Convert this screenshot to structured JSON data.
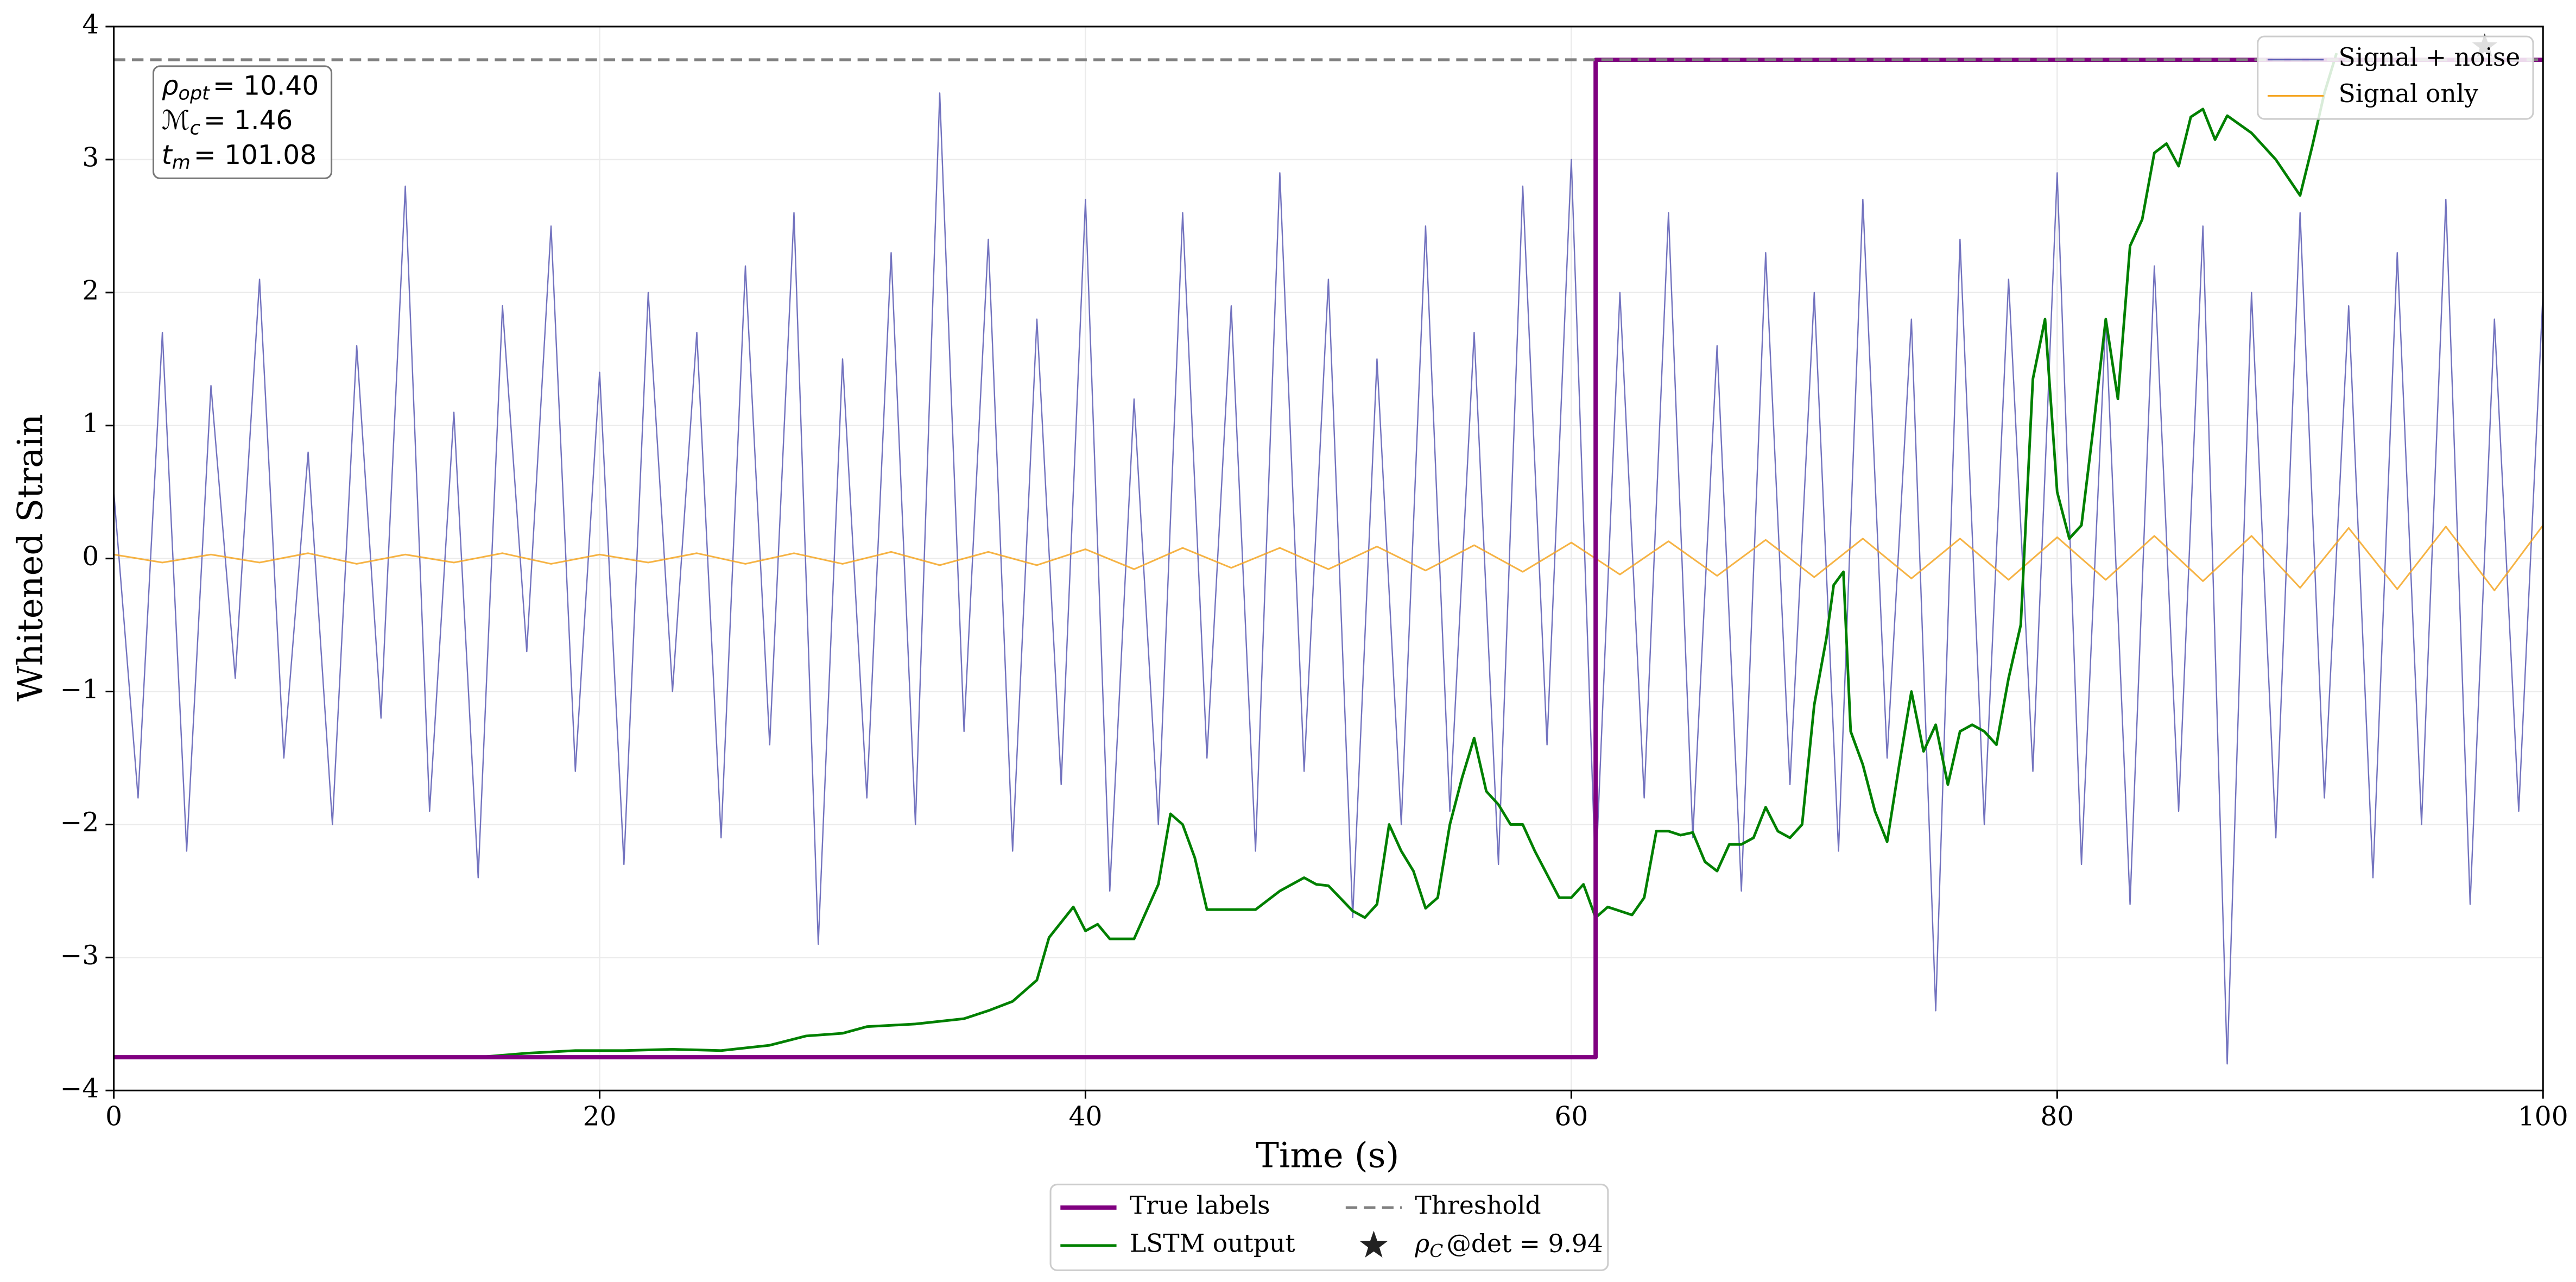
{
  "chart_data": {
    "type": "line",
    "xlabel": "Time (s)",
    "ylabel": "Whitened Strain",
    "xlim": [
      0,
      100
    ],
    "ylim": [
      -4,
      4
    ],
    "xticks": [
      0,
      20,
      40,
      60,
      80,
      100
    ],
    "yticks": [
      {
        "value": -4,
        "label": "−4"
      },
      {
        "value": -3,
        "label": "−3"
      },
      {
        "value": -2,
        "label": "−2"
      },
      {
        "value": -1,
        "label": "−1"
      },
      0,
      1,
      2,
      3,
      4
    ],
    "grid": true,
    "series": [
      {
        "name": "Signal + noise",
        "color": "#5a5ab4",
        "legend_loc": "upper right",
        "x": [
          0,
          1,
          2,
          3,
          4,
          5,
          6,
          7,
          8,
          9,
          10,
          11,
          12,
          13,
          14,
          15,
          16,
          17,
          18,
          19,
          20,
          21,
          22,
          23,
          24,
          25,
          26,
          27,
          28,
          29,
          30,
          31,
          32,
          33,
          34,
          35,
          36,
          37,
          38,
          39,
          40,
          41,
          42,
          43,
          44,
          45,
          46,
          47,
          48,
          49,
          50,
          51,
          52,
          53,
          54,
          55,
          56,
          57,
          58,
          59,
          60,
          61,
          62,
          63,
          64,
          65,
          66,
          67,
          68,
          69,
          70,
          71,
          72,
          73,
          74,
          75,
          76,
          77,
          78,
          79,
          80,
          81,
          82,
          83,
          84,
          85,
          86,
          87,
          88,
          89,
          90,
          91,
          92,
          93,
          94,
          95,
          96,
          97,
          98,
          99,
          100
        ],
        "values": [
          0.5,
          -1.8,
          1.7,
          -2.2,
          1.3,
          -0.9,
          2.1,
          -1.5,
          0.8,
          -2.0,
          1.6,
          -1.2,
          2.8,
          -1.9,
          1.1,
          -2.4,
          1.9,
          -0.7,
          2.5,
          -1.6,
          1.4,
          -2.3,
          2.0,
          -1.0,
          1.7,
          -2.1,
          2.2,
          -1.4,
          2.6,
          -2.9,
          1.5,
          -1.8,
          2.3,
          -2.0,
          3.5,
          -1.3,
          2.4,
          -2.2,
          1.8,
          -1.7,
          2.7,
          -2.5,
          1.2,
          -2.0,
          2.6,
          -1.5,
          1.9,
          -2.2,
          2.9,
          -1.6,
          2.1,
          -2.7,
          1.5,
          -2.0,
          2.5,
          -1.9,
          1.7,
          -2.3,
          2.8,
          -1.4,
          3.0,
          -2.4,
          2.0,
          -1.8,
          2.6,
          -2.1,
          1.6,
          -2.5,
          2.3,
          -1.7,
          2.0,
          -2.2,
          2.7,
          -1.5,
          1.8,
          -3.4,
          2.4,
          -2.0,
          2.1,
          -1.6,
          2.9,
          -2.3,
          1.8,
          -2.6,
          2.2,
          -1.9,
          2.5,
          -3.8,
          2.0,
          -2.1,
          2.6,
          -1.8,
          1.9,
          -2.4,
          2.3,
          -2.0,
          2.7,
          -2.6,
          1.8,
          -1.9,
          2.0
        ]
      },
      {
        "name": "Signal only",
        "color": "#f5a623",
        "legend_loc": "upper right",
        "x": [
          0,
          2,
          4,
          6,
          8,
          10,
          12,
          14,
          16,
          18,
          20,
          22,
          24,
          26,
          28,
          30,
          32,
          34,
          36,
          38,
          40,
          42,
          44,
          46,
          48,
          50,
          52,
          54,
          56,
          58,
          60,
          62,
          64,
          66,
          68,
          70,
          72,
          74,
          76,
          78,
          80,
          82,
          84,
          86,
          88,
          90,
          92,
          94,
          96,
          98,
          100
        ],
        "values": [
          0.03,
          -0.03,
          0.03,
          -0.03,
          0.04,
          -0.04,
          0.03,
          -0.03,
          0.04,
          -0.04,
          0.03,
          -0.03,
          0.04,
          -0.04,
          0.04,
          -0.04,
          0.05,
          -0.05,
          0.05,
          -0.05,
          0.07,
          -0.08,
          0.08,
          -0.07,
          0.08,
          -0.08,
          0.09,
          -0.09,
          0.1,
          -0.1,
          0.12,
          -0.12,
          0.13,
          -0.13,
          0.14,
          -0.14,
          0.15,
          -0.15,
          0.15,
          -0.16,
          0.16,
          -0.16,
          0.17,
          -0.17,
          0.17,
          -0.22,
          0.23,
          -0.23,
          0.24,
          -0.24,
          0.25
        ]
      },
      {
        "name": "LSTM output",
        "color": "#008000",
        "legend_loc": "lower center",
        "x": [
          0,
          15,
          17,
          19,
          21,
          23,
          25,
          27,
          28.5,
          30,
          31,
          33,
          35,
          36,
          37,
          38,
          38.5,
          39.5,
          40,
          40.5,
          41,
          42,
          43,
          43.5,
          44,
          44.5,
          45,
          47,
          48,
          49,
          49.5,
          50,
          51,
          51.5,
          52,
          52.5,
          53,
          53.5,
          54,
          54.5,
          55,
          55.5,
          56,
          56.5,
          57,
          57.5,
          58,
          58.5,
          59.5,
          60,
          60.5,
          61,
          61.5,
          62,
          62.5,
          63,
          63.5,
          64,
          64.5,
          65,
          65.5,
          66,
          66.5,
          67,
          67.5,
          68,
          68.5,
          69,
          69.5,
          70,
          70.5,
          70.8,
          71.2,
          71.5,
          72,
          72.5,
          73,
          73.5,
          74,
          74.5,
          75,
          75.5,
          76,
          76.5,
          77,
          77.5,
          78,
          78.5,
          79,
          79.5,
          80,
          80.5,
          81,
          81.5,
          82,
          82.5,
          83,
          83.5,
          84,
          84.5,
          85,
          85.5,
          86,
          86.5,
          87,
          88,
          89,
          90,
          90.5,
          91,
          91.5
        ],
        "values": [
          -3.75,
          -3.75,
          -3.72,
          -3.7,
          -3.7,
          -3.69,
          -3.7,
          -3.66,
          -3.59,
          -3.57,
          -3.52,
          -3.5,
          -3.46,
          -3.4,
          -3.33,
          -3.17,
          -2.85,
          -2.62,
          -2.8,
          -2.75,
          -2.86,
          -2.86,
          -2.45,
          -1.92,
          -2.0,
          -2.25,
          -2.64,
          -2.64,
          -2.5,
          -2.4,
          -2.45,
          -2.46,
          -2.65,
          -2.7,
          -2.6,
          -2.0,
          -2.2,
          -2.35,
          -2.63,
          -2.55,
          -2.0,
          -1.65,
          -1.35,
          -1.75,
          -1.85,
          -2.0,
          -2.0,
          -2.2,
          -2.55,
          -2.55,
          -2.45,
          -2.7,
          -2.62,
          -2.65,
          -2.68,
          -2.55,
          -2.05,
          -2.05,
          -2.08,
          -2.06,
          -2.28,
          -2.35,
          -2.15,
          -2.15,
          -2.1,
          -1.87,
          -2.05,
          -2.1,
          -2.0,
          -1.1,
          -0.6,
          -0.2,
          -0.1,
          -1.3,
          -1.55,
          -1.9,
          -2.13,
          -1.55,
          -1.0,
          -1.45,
          -1.25,
          -1.7,
          -1.3,
          -1.25,
          -1.3,
          -1.4,
          -0.9,
          -0.5,
          1.35,
          1.8,
          0.5,
          0.15,
          0.25,
          1.0,
          1.8,
          1.2,
          2.35,
          2.55,
          3.05,
          3.12,
          2.95,
          3.32,
          3.38,
          3.15,
          3.33,
          3.2,
          3.0,
          2.73,
          3.1,
          3.5,
          3.8
        ]
      },
      {
        "name": "True labels",
        "color": "#800080",
        "legend_loc": "lower center",
        "x": [
          0,
          61,
          61,
          100
        ],
        "values": [
          -3.75,
          -3.75,
          3.75,
          3.75
        ]
      }
    ],
    "threshold": {
      "name": "Threshold",
      "value": 3.75,
      "color": "#808080",
      "legend_loc": "lower center"
    },
    "marker": {
      "symbol": "ρ",
      "subscript": "C",
      "text": "@det = 9.94",
      "x": 97.6,
      "y": 3.85,
      "color": "#222222",
      "legend_loc": "lower center"
    },
    "annotation": [
      {
        "symbol": "ρ",
        "subscript": "opt",
        "text": "= 10.40"
      },
      {
        "symbol": "ℳ",
        "subscript": "c",
        "text": "= 1.46"
      },
      {
        "symbol": "t",
        "subscript": "m",
        "text": "= 101.08"
      }
    ]
  }
}
